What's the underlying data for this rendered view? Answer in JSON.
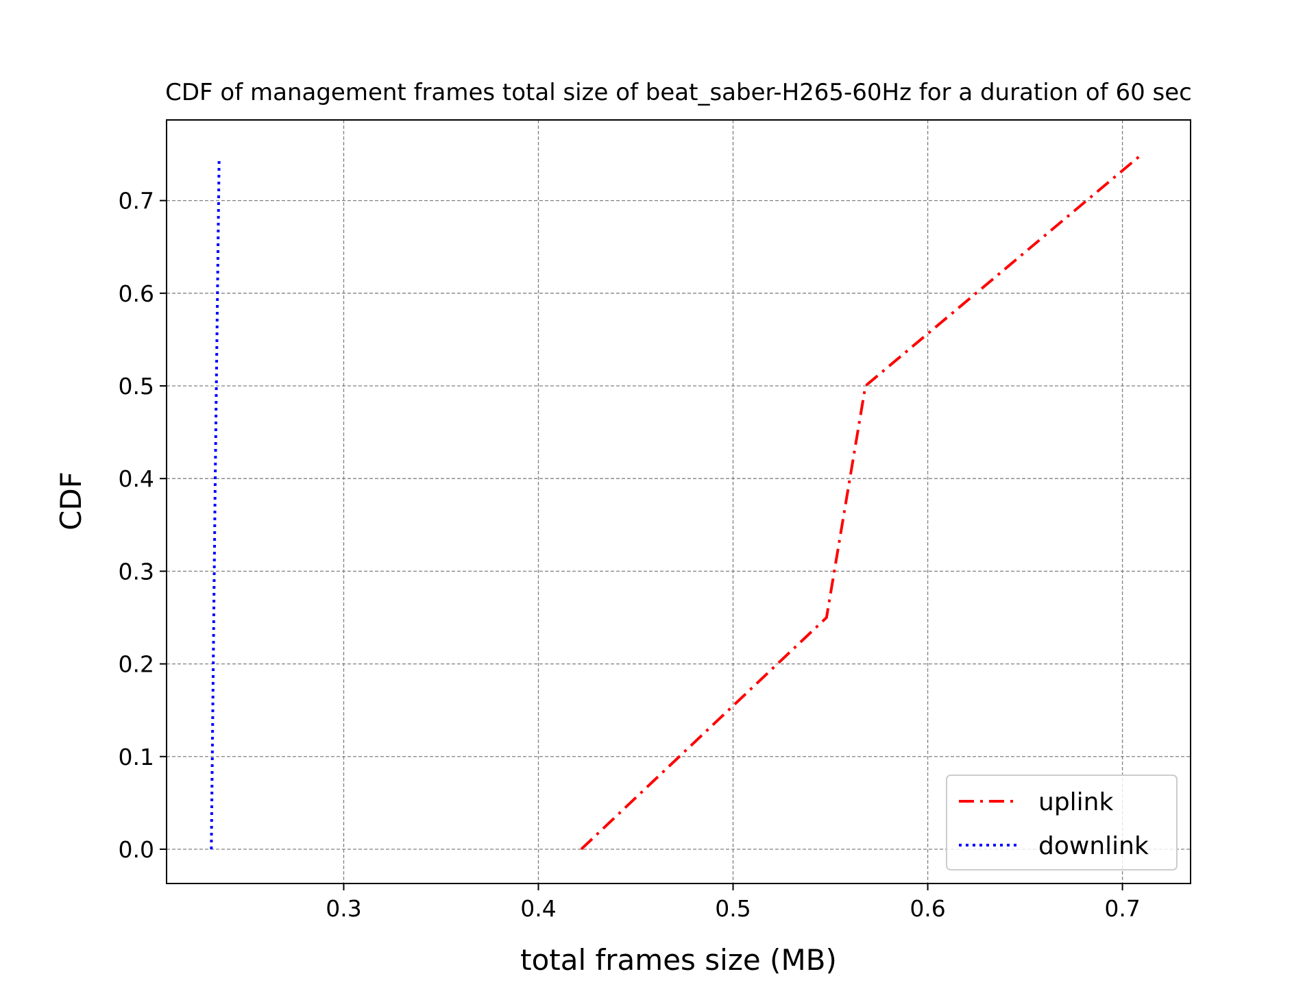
{
  "chart_data": {
    "type": "line",
    "title": "CDF of management frames total size of beat_saber-H265-60Hz for a duration of 60 sec",
    "xlabel": "total frames size (MB)",
    "ylabel": "CDF",
    "xlim": [
      0.209,
      0.735
    ],
    "ylim": [
      -0.037,
      0.787
    ],
    "xticks": [
      0.3,
      0.4,
      0.5,
      0.6,
      0.7
    ],
    "yticks": [
      0.0,
      0.1,
      0.2,
      0.3,
      0.4,
      0.5,
      0.6,
      0.7
    ],
    "xtick_labels": [
      "0.3",
      "0.4",
      "0.5",
      "0.6",
      "0.7"
    ],
    "ytick_labels": [
      "0.0",
      "0.1",
      "0.2",
      "0.3",
      "0.4",
      "0.5",
      "0.6",
      "0.7"
    ],
    "grid": true,
    "legend_position": "lower-right",
    "series": [
      {
        "name": "uplink",
        "color": "#ff0000",
        "style": "dash-dot",
        "x": [
          0.422,
          0.548,
          0.568,
          0.71
        ],
        "y": [
          0.0,
          0.25,
          0.5,
          0.75
        ]
      },
      {
        "name": "downlink",
        "color": "#0000ff",
        "style": "dotted",
        "x": [
          0.232,
          0.234,
          0.236
        ],
        "y": [
          0.0,
          0.4,
          0.745
        ]
      }
    ]
  }
}
